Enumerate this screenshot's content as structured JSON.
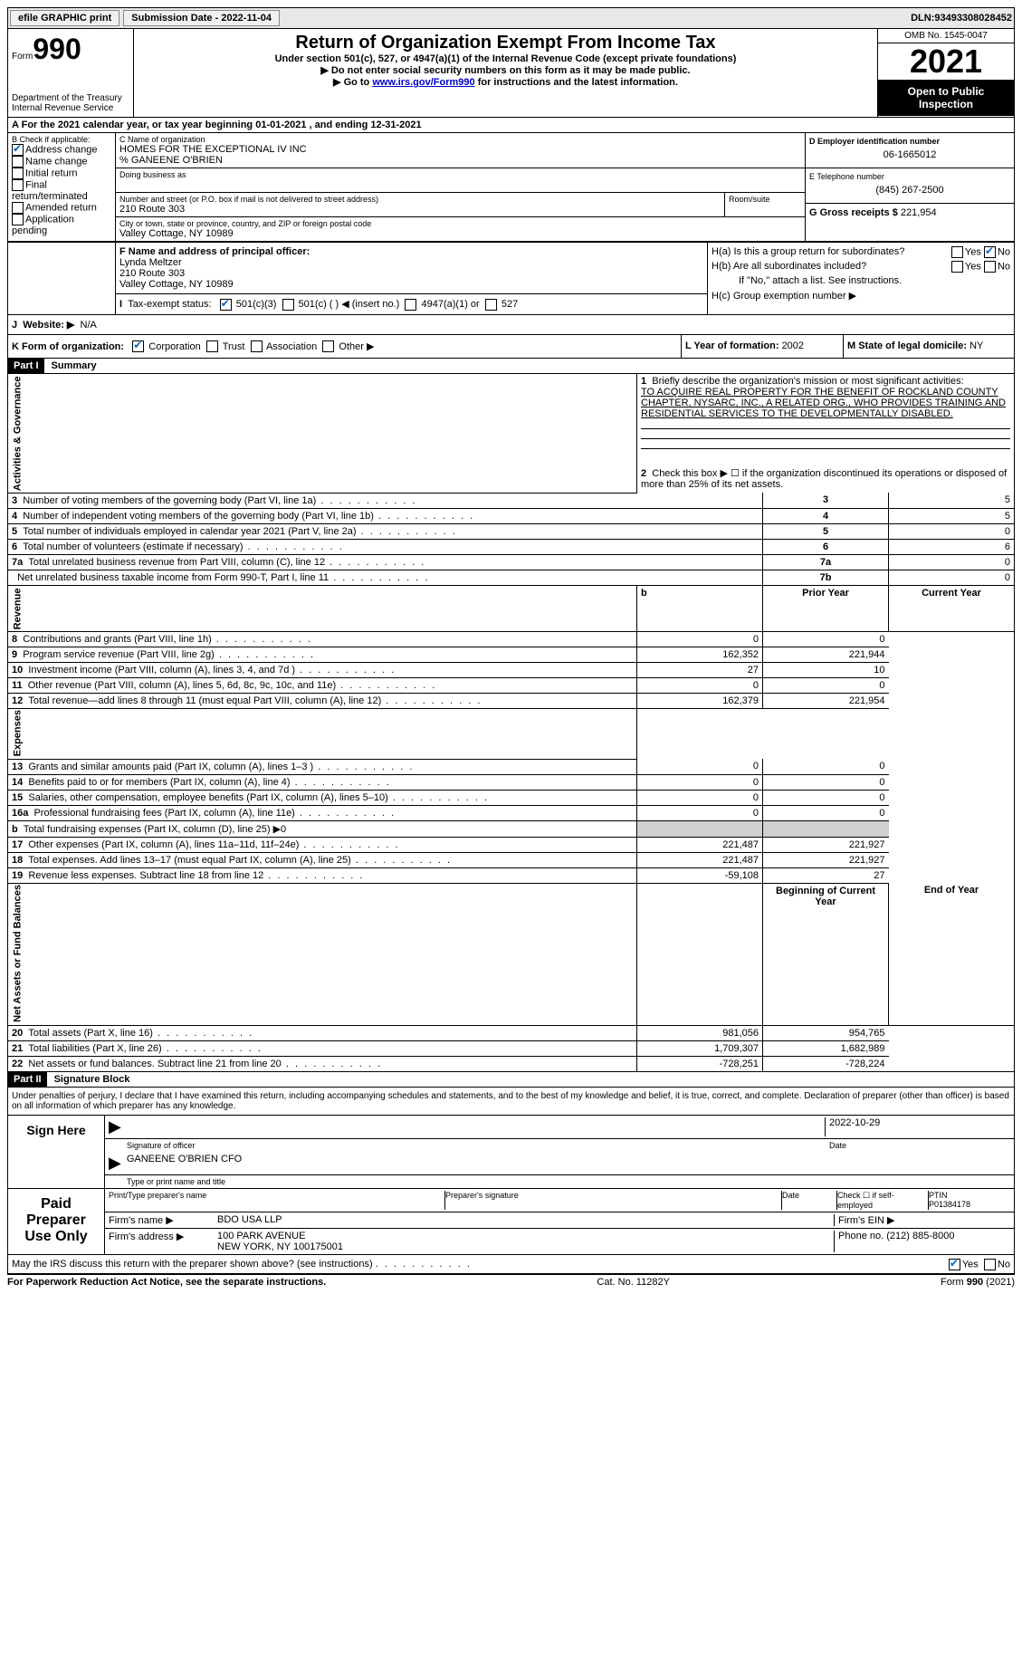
{
  "topbar": {
    "efile": "efile GRAPHIC print",
    "submission_label": "Submission Date - ",
    "submission_date": "2022-11-04",
    "dln_label": "DLN: ",
    "dln": "93493308028452"
  },
  "header": {
    "form_word": "Form",
    "form_num": "990",
    "dept": "Department of the Treasury",
    "irs": "Internal Revenue Service",
    "title": "Return of Organization Exempt From Income Tax",
    "sub1": "Under section 501(c), 527, or 4947(a)(1) of the Internal Revenue Code (except private foundations)",
    "sub2": "Do not enter social security numbers on this form as it may be made public.",
    "sub3_pre": "Go to ",
    "sub3_link": "www.irs.gov/Form990",
    "sub3_post": " for instructions and the latest information.",
    "omb": "OMB No. 1545-0047",
    "year": "2021",
    "inspection": "Open to Public Inspection"
  },
  "line_a": {
    "text_pre": "For the 2021 calendar year, or tax year beginning ",
    "begin": "01-01-2021",
    "mid": " , and ending ",
    "end": "12-31-2021"
  },
  "box_b": {
    "label": "B Check if applicable:",
    "items": [
      {
        "label": "Address change",
        "checked": true
      },
      {
        "label": "Name change",
        "checked": false
      },
      {
        "label": "Initial return",
        "checked": false
      },
      {
        "label": "Final return/terminated",
        "checked": false
      },
      {
        "label": "Amended return",
        "checked": false
      },
      {
        "label": "Application pending",
        "checked": false
      }
    ]
  },
  "box_c": {
    "name_label": "C Name of organization",
    "name": "HOMES FOR THE EXCEPTIONAL IV INC",
    "care_of": "% GANEENE O'BRIEN",
    "dba_label": "Doing business as",
    "addr_label": "Number and street (or P.O. box if mail is not delivered to street address)",
    "room_label": "Room/suite",
    "addr": "210 Route 303",
    "city_label": "City or town, state or province, country, and ZIP or foreign postal code",
    "city": "Valley Cottage, NY  10989"
  },
  "box_d": {
    "label": "D Employer identification number",
    "value": "06-1665012"
  },
  "box_e": {
    "label": "E Telephone number",
    "value": "(845) 267-2500"
  },
  "box_f": {
    "label": "F Name and address of principal officer:",
    "name": "Lynda Meltzer",
    "addr1": "210 Route 303",
    "addr2": "Valley Cottage, NY  10989"
  },
  "box_g": {
    "label": "G Gross receipts $ ",
    "value": "221,954"
  },
  "box_h": {
    "a": "H(a)  Is this a group return for subordinates?",
    "b": "H(b)  Are all subordinates included?",
    "note": "If \"No,\" attach a list. See instructions.",
    "c": "H(c)  Group exemption number ▶",
    "yes": "Yes",
    "no": "No"
  },
  "box_i": {
    "label": "Tax-exempt status:",
    "opts": [
      "501(c)(3)",
      "501(c) (  ) ◀ (insert no.)",
      "4947(a)(1) or",
      "527"
    ]
  },
  "box_j": {
    "label": "Website: ▶",
    "value": "N/A"
  },
  "box_k": {
    "label": "K Form of organization:",
    "opts": [
      "Corporation",
      "Trust",
      "Association",
      "Other ▶"
    ]
  },
  "box_l": {
    "label": "L Year of formation: ",
    "value": "2002"
  },
  "box_m": {
    "label": "M State of legal domicile: ",
    "value": "NY"
  },
  "part1": {
    "header": "Part I",
    "title": "Summary",
    "line1_label": "Briefly describe the organization's mission or most significant activities:",
    "line1_text": "TO ACQUIRE REAL PROPERTY FOR THE BENEFIT OF ROCKLAND COUNTY CHAPTER, NYSARC, INC., A RELATED ORG., WHO PROVIDES TRAINING AND RESIDENTIAL SERVICES TO THE DEVELOPMENTALLY DISABLED.",
    "line2": "Check this box ▶ ☐ if the organization discontinued its operations or disposed of more than 25% of its net assets.",
    "rows_simple": [
      {
        "n": "3",
        "label": "Number of voting members of the governing body (Part VI, line 1a)",
        "box": "3",
        "val": "5"
      },
      {
        "n": "4",
        "label": "Number of independent voting members of the governing body (Part VI, line 1b)",
        "box": "4",
        "val": "5"
      },
      {
        "n": "5",
        "label": "Total number of individuals employed in calendar year 2021 (Part V, line 2a)",
        "box": "5",
        "val": "0"
      },
      {
        "n": "6",
        "label": "Total number of volunteers (estimate if necessary)",
        "box": "6",
        "val": "6"
      },
      {
        "n": "7a",
        "label": "Total unrelated business revenue from Part VIII, column (C), line 12",
        "box": "7a",
        "val": "0"
      },
      {
        "n": "",
        "label": "Net unrelated business taxable income from Form 990-T, Part I, line 11",
        "box": "7b",
        "val": "0"
      }
    ],
    "col_headers": {
      "prior": "Prior Year",
      "current": "Current Year"
    },
    "revenue": [
      {
        "n": "8",
        "label": "Contributions and grants (Part VIII, line 1h)",
        "prior": "0",
        "current": "0"
      },
      {
        "n": "9",
        "label": "Program service revenue (Part VIII, line 2g)",
        "prior": "162,352",
        "current": "221,944"
      },
      {
        "n": "10",
        "label": "Investment income (Part VIII, column (A), lines 3, 4, and 7d )",
        "prior": "27",
        "current": "10"
      },
      {
        "n": "11",
        "label": "Other revenue (Part VIII, column (A), lines 5, 6d, 8c, 9c, 10c, and 11e)",
        "prior": "0",
        "current": "0"
      },
      {
        "n": "12",
        "label": "Total revenue—add lines 8 through 11 (must equal Part VIII, column (A), line 12)",
        "prior": "162,379",
        "current": "221,954"
      }
    ],
    "expenses": [
      {
        "n": "13",
        "label": "Grants and similar amounts paid (Part IX, column (A), lines 1–3 )",
        "prior": "0",
        "current": "0"
      },
      {
        "n": "14",
        "label": "Benefits paid to or for members (Part IX, column (A), line 4)",
        "prior": "0",
        "current": "0"
      },
      {
        "n": "15",
        "label": "Salaries, other compensation, employee benefits (Part IX, column (A), lines 5–10)",
        "prior": "0",
        "current": "0"
      },
      {
        "n": "16a",
        "label": "Professional fundraising fees (Part IX, column (A), line 11e)",
        "prior": "0",
        "current": "0"
      },
      {
        "n": "b",
        "label": "Total fundraising expenses (Part IX, column (D), line 25) ▶0",
        "prior": "",
        "current": "",
        "shaded": true
      },
      {
        "n": "17",
        "label": "Other expenses (Part IX, column (A), lines 11a–11d, 11f–24e)",
        "prior": "221,487",
        "current": "221,927"
      },
      {
        "n": "18",
        "label": "Total expenses. Add lines 13–17 (must equal Part IX, column (A), line 25)",
        "prior": "221,487",
        "current": "221,927"
      },
      {
        "n": "19",
        "label": "Revenue less expenses. Subtract line 18 from line 12",
        "prior": "-59,108",
        "current": "27"
      }
    ],
    "net_headers": {
      "begin": "Beginning of Current Year",
      "end": "End of Year"
    },
    "netassets": [
      {
        "n": "20",
        "label": "Total assets (Part X, line 16)",
        "prior": "981,056",
        "current": "954,765"
      },
      {
        "n": "21",
        "label": "Total liabilities (Part X, line 26)",
        "prior": "1,709,307",
        "current": "1,682,989"
      },
      {
        "n": "22",
        "label": "Net assets or fund balances. Subtract line 21 from line 20",
        "prior": "-728,251",
        "current": "-728,224"
      }
    ],
    "vert_ag": "Activities & Governance",
    "vert_rev": "Revenue",
    "vert_exp": "Expenses",
    "vert_net": "Net Assets or Fund Balances"
  },
  "part2": {
    "header": "Part II",
    "title": "Signature Block",
    "decl": "Under penalties of perjury, I declare that I have examined this return, including accompanying schedules and statements, and to the best of my knowledge and belief, it is true, correct, and complete. Declaration of preparer (other than officer) is based on all information of which preparer has any knowledge.",
    "sign_here": "Sign Here",
    "sig_officer": "Signature of officer",
    "sig_date": "2022-10-29",
    "date_label": "Date",
    "officer_name": "GANEENE O'BRIEN  CFO",
    "type_label": "Type or print name and title",
    "paid": "Paid Preparer Use Only",
    "prep_name_label": "Print/Type preparer's name",
    "prep_sig_label": "Preparer's signature",
    "check_self": "Check ☐ if self-employed",
    "ptin_label": "PTIN",
    "ptin": "P01384178",
    "firm_name_label": "Firm's name    ▶",
    "firm_name": "BDO USA LLP",
    "firm_ein_label": "Firm's EIN ▶",
    "firm_addr_label": "Firm's address ▶",
    "firm_addr1": "100 PARK AVENUE",
    "firm_addr2": "NEW YORK, NY  100175001",
    "phone_label": "Phone no. ",
    "phone": "(212) 885-8000",
    "discuss": "May the IRS discuss this return with the preparer shown above? (see instructions)"
  },
  "footer": {
    "left": "For Paperwork Reduction Act Notice, see the separate instructions.",
    "center": "Cat. No. 11282Y",
    "right": "Form 990 (2021)"
  }
}
